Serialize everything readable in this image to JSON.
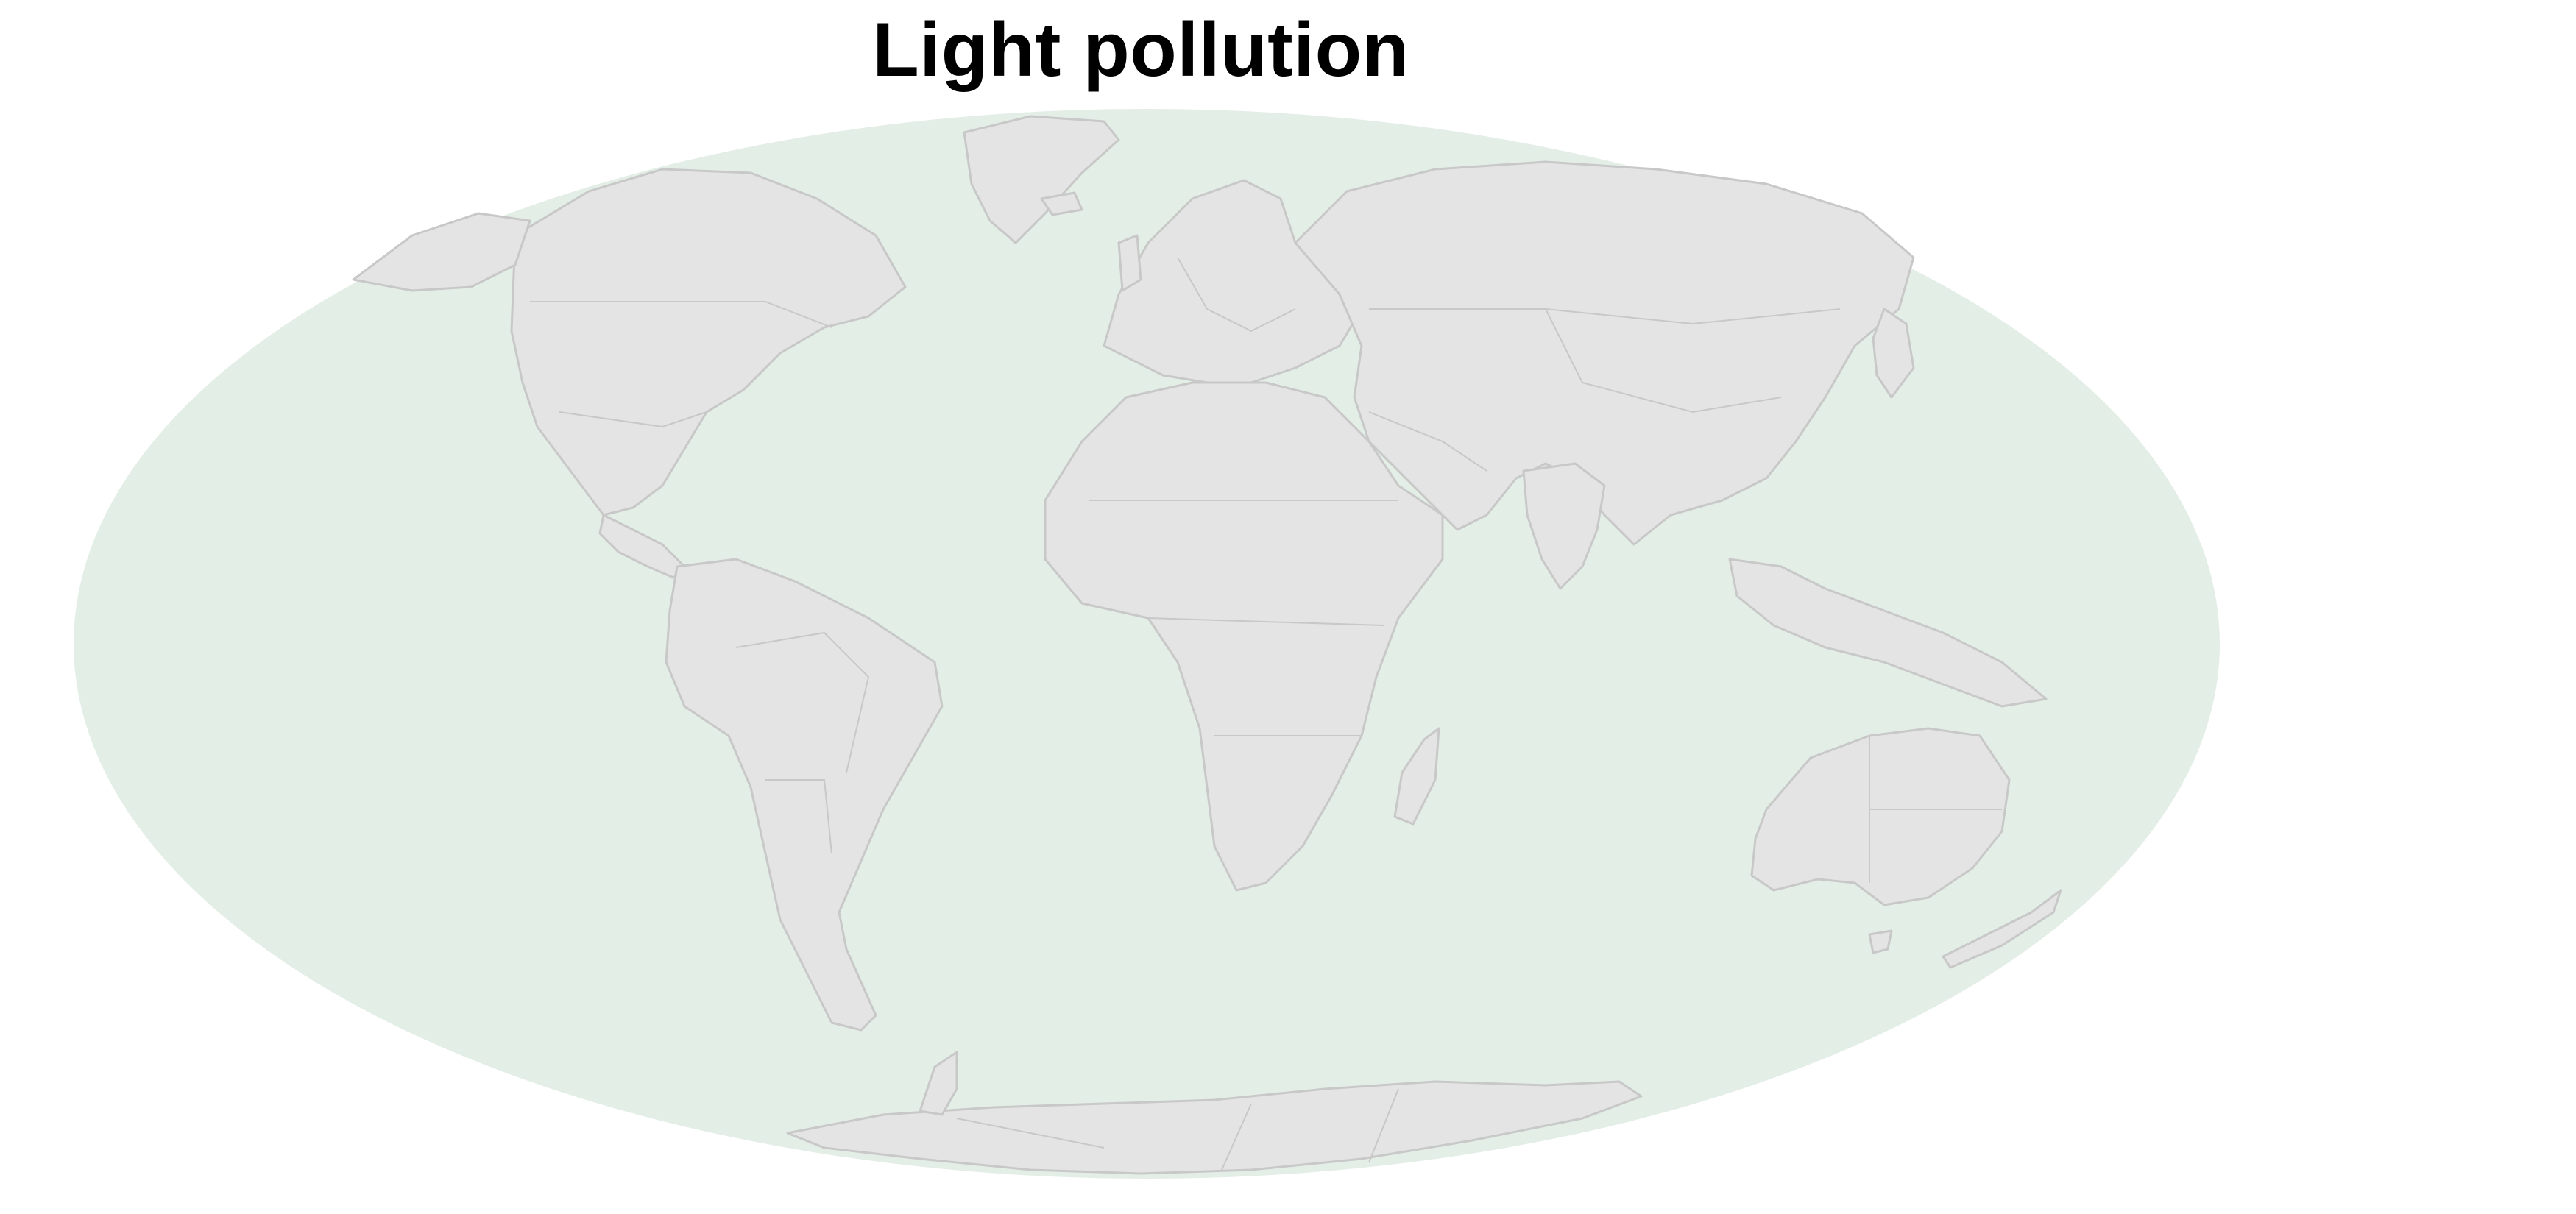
{
  "map": {
    "title": "Light pollution",
    "projection": "mollweide",
    "colors": {
      "ocean": "#e3eee6",
      "land": "#e4e4e4",
      "border": "#c8c8c8",
      "background": "#ffffff"
    }
  }
}
